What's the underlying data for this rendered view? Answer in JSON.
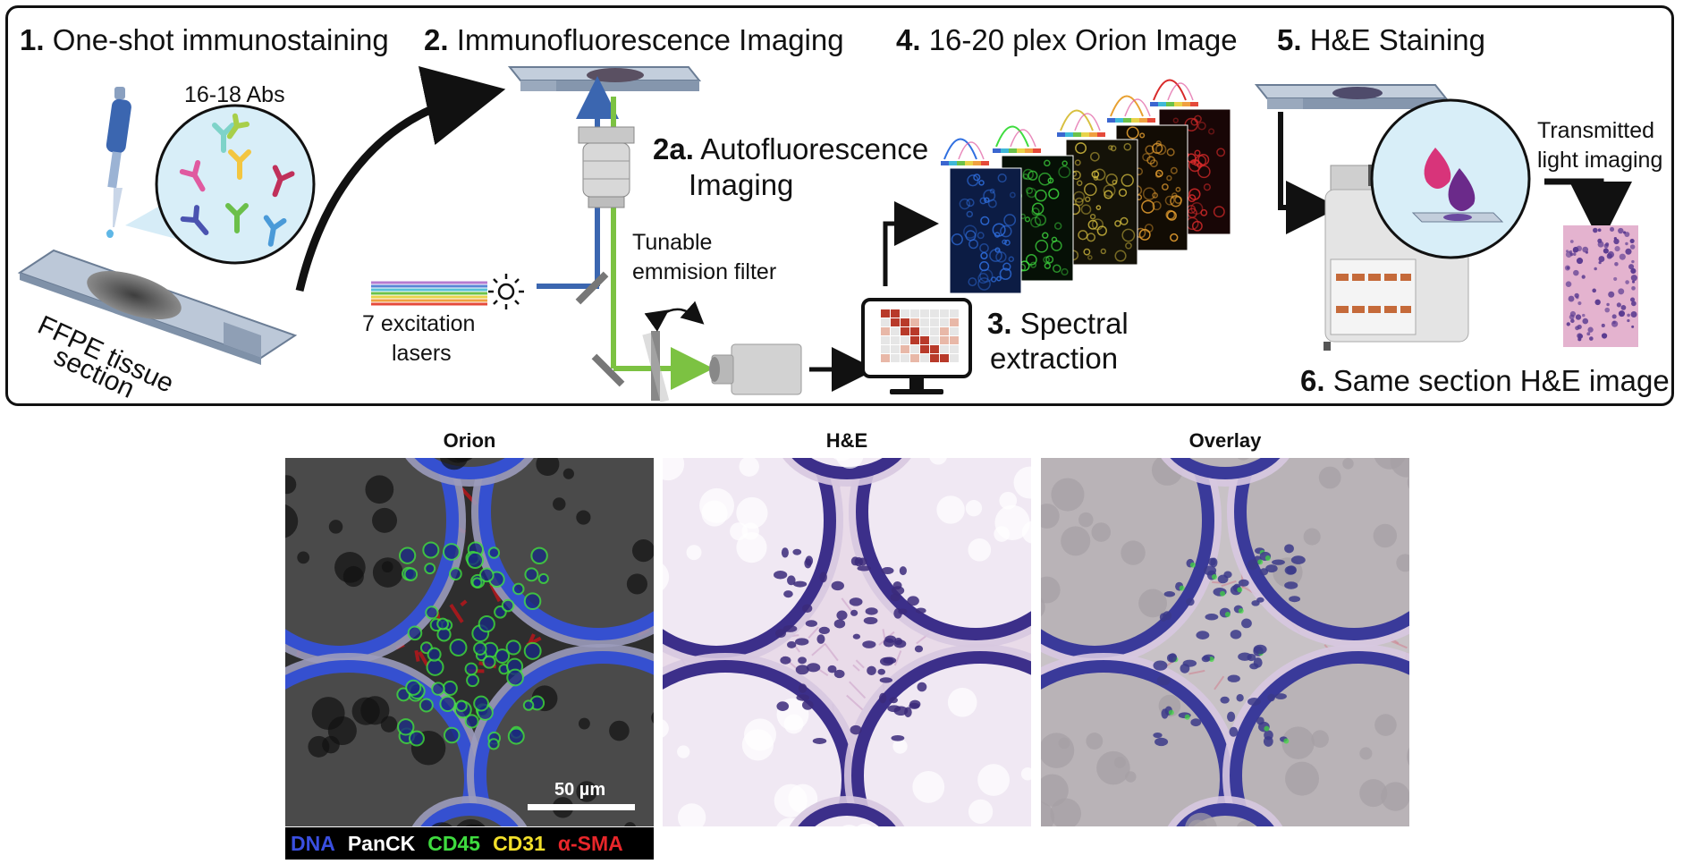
{
  "steps": {
    "s1": {
      "num": "1.",
      "text": " One-shot immunostaining"
    },
    "s2": {
      "num": "2.",
      "text": " Immunofluorescence Imaging"
    },
    "s2a": {
      "num": "2a.",
      "text": " Autofluorescence",
      "text2": "Imaging"
    },
    "s3": {
      "num": "3.",
      "text": " Spectral",
      "text2": "extraction"
    },
    "s4": {
      "num": "4.",
      "text": " 16-20 plex Orion Image"
    },
    "s5": {
      "num": "5.",
      "text": " H&E Staining"
    },
    "s6": {
      "num": "6.",
      "text": " Same section H&E image"
    }
  },
  "labels": {
    "abs": "16-18 Abs",
    "ffpe_line1": "FFPE tissue",
    "ffpe_line2": "section",
    "filter_line1": "Tunable",
    "filter_line2": "emmision filter",
    "lasers_line1": "7 excitation",
    "lasers_line2": "lasers",
    "transmitted_line1": "Transmitted",
    "transmitted_line2": "light imaging"
  },
  "panels": {
    "orion": "Orion",
    "he": "H&E",
    "overlay": "Overlay",
    "scalebar": "50 µm"
  },
  "legend": [
    {
      "text": "DNA",
      "color": "#3a4fe0"
    },
    {
      "text": "PanCK",
      "color": "#ffffff"
    },
    {
      "text": "CD45",
      "color": "#3fdc3f"
    },
    {
      "text": "CD31",
      "color": "#f2e02a"
    },
    {
      "text": "α-SMA",
      "color": "#e8262a"
    }
  ],
  "colors": {
    "beam_blue": "#3b66b0",
    "beam_green": "#7cc242",
    "arrow": "#111111"
  }
}
